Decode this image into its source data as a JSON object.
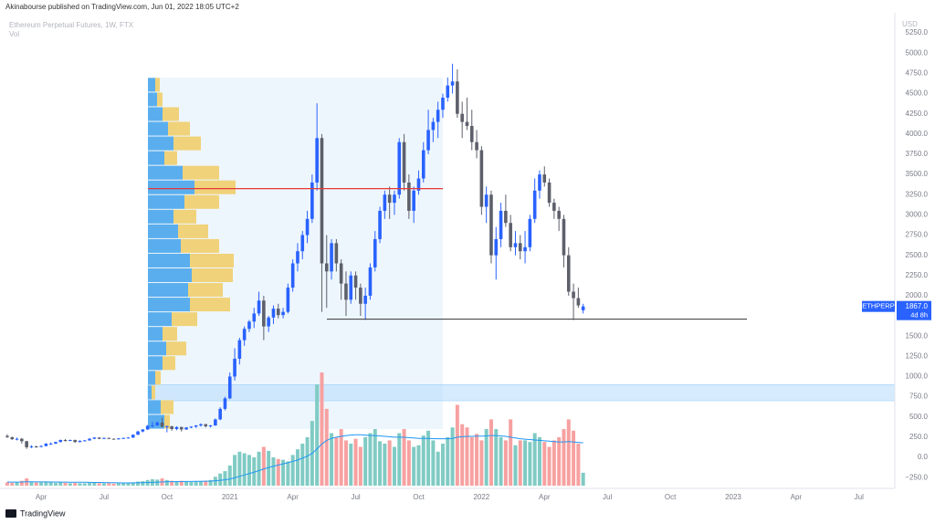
{
  "header": {
    "publisher": "Akinabourse published on TradingView.com, Jun 01, 2022 18:05 UTC+2",
    "footer": "TradingView"
  },
  "chart_data": {
    "type": "candlestick",
    "title": "Ethereum Perpetual Futures, 1W, FTX",
    "volume_label": "Vol",
    "currency": "USD",
    "up_color": "#2962ff",
    "down_color": "#5d606b",
    "vol_up_color": "#80cbc4",
    "vol_down_color": "#f7a1a1",
    "ma_color": "#2196f3",
    "profile_up_color": "#5aaeee",
    "profile_down_color": "#f0d27a",
    "poc_color": "#e53935",
    "support_color": "#333333",
    "zone_color": "#bbdefb",
    "ylim": [
      -350,
      5500
    ],
    "xlim": [
      -1.5,
      183.4
    ],
    "yticks": [
      {
        "value": 5250,
        "label": "5250.0"
      },
      {
        "value": 5000,
        "label": "5000.0"
      },
      {
        "value": 4750,
        "label": "4750.0"
      },
      {
        "value": 4500,
        "label": "4500.0"
      },
      {
        "value": 4250,
        "label": "4250.0"
      },
      {
        "value": 4000,
        "label": "4000.0"
      },
      {
        "value": 3750,
        "label": "3750.0"
      },
      {
        "value": 3500,
        "label": "3500.0"
      },
      {
        "value": 3250,
        "label": "3250.0"
      },
      {
        "value": 3000,
        "label": "3000.0"
      },
      {
        "value": 2750,
        "label": "2750.0"
      },
      {
        "value": 2500,
        "label": "2500.0"
      },
      {
        "value": 2250,
        "label": "2250.0"
      },
      {
        "value": 2000,
        "label": "2000.0"
      },
      {
        "value": 1750,
        "label": "1750.0"
      },
      {
        "value": 1500,
        "label": "1500.0"
      },
      {
        "value": 1250,
        "label": "1250.0"
      },
      {
        "value": 1000,
        "label": "1000.0"
      },
      {
        "value": 750,
        "label": "750.0"
      },
      {
        "value": 500,
        "label": "500.0"
      },
      {
        "value": 250,
        "label": "250.0"
      },
      {
        "value": 0,
        "label": "0.0"
      },
      {
        "value": -250,
        "label": "−250.0"
      }
    ],
    "xticks": [
      {
        "value": 7,
        "label": "Apr"
      },
      {
        "value": 20,
        "label": "Jul"
      },
      {
        "value": 33,
        "label": "Oct"
      },
      {
        "value": 46,
        "label": "2021"
      },
      {
        "value": 59,
        "label": "Apr"
      },
      {
        "value": 72,
        "label": "Jul"
      },
      {
        "value": 85,
        "label": "Oct"
      },
      {
        "value": 98,
        "label": "2022"
      },
      {
        "value": 111,
        "label": "Apr"
      },
      {
        "value": 124,
        "label": "Jul"
      },
      {
        "value": 137,
        "label": "Oct"
      },
      {
        "value": 150,
        "label": "2023"
      },
      {
        "value": 163,
        "label": "Apr"
      },
      {
        "value": 176,
        "label": "Jul"
      }
    ],
    "ohlc": [
      [
        265,
        285,
        240,
        250
      ],
      [
        250,
        255,
        215,
        225
      ],
      [
        225,
        245,
        210,
        230
      ],
      [
        230,
        240,
        170,
        200
      ],
      [
        200,
        205,
        105,
        125
      ],
      [
        125,
        150,
        115,
        135
      ],
      [
        135,
        145,
        120,
        130
      ],
      [
        130,
        150,
        125,
        140
      ],
      [
        140,
        175,
        135,
        170
      ],
      [
        170,
        185,
        155,
        170
      ],
      [
        170,
        195,
        165,
        190
      ],
      [
        190,
        220,
        185,
        215
      ],
      [
        215,
        225,
        195,
        205
      ],
      [
        205,
        220,
        200,
        215
      ],
      [
        215,
        220,
        180,
        190
      ],
      [
        190,
        210,
        185,
        205
      ],
      [
        205,
        215,
        200,
        210
      ],
      [
        210,
        240,
        205,
        230
      ],
      [
        230,
        250,
        225,
        245
      ],
      [
        245,
        250,
        225,
        230
      ],
      [
        230,
        245,
        225,
        240
      ],
      [
        240,
        245,
        225,
        230
      ],
      [
        230,
        235,
        220,
        225
      ],
      [
        225,
        240,
        220,
        235
      ],
      [
        235,
        245,
        230,
        240
      ],
      [
        240,
        250,
        235,
        245
      ],
      [
        245,
        285,
        240,
        280
      ],
      [
        280,
        330,
        275,
        320
      ],
      [
        320,
        350,
        310,
        345
      ],
      [
        345,
        400,
        340,
        390
      ],
      [
        390,
        440,
        370,
        395
      ],
      [
        395,
        445,
        390,
        430
      ],
      [
        430,
        490,
        370,
        380
      ],
      [
        380,
        395,
        310,
        385
      ],
      [
        385,
        390,
        330,
        350
      ],
      [
        350,
        385,
        335,
        375
      ],
      [
        375,
        380,
        320,
        345
      ],
      [
        345,
        375,
        340,
        370
      ],
      [
        370,
        385,
        360,
        380
      ],
      [
        380,
        400,
        365,
        395
      ],
      [
        395,
        420,
        380,
        410
      ],
      [
        410,
        415,
        370,
        385
      ],
      [
        385,
        400,
        370,
        395
      ],
      [
        395,
        480,
        390,
        470
      ],
      [
        470,
        620,
        460,
        600
      ],
      [
        600,
        750,
        580,
        730
      ],
      [
        730,
        1050,
        720,
        1000
      ],
      [
        1000,
        1350,
        950,
        1220
      ],
      [
        1220,
        1480,
        1150,
        1450
      ],
      [
        1450,
        1620,
        1380,
        1590
      ],
      [
        1590,
        1700,
        1550,
        1680
      ],
      [
        1680,
        1850,
        1600,
        1780
      ],
      [
        1780,
        2050,
        1750,
        1940
      ],
      [
        1940,
        2000,
        1450,
        1620
      ],
      [
        1620,
        1750,
        1550,
        1730
      ],
      [
        1730,
        1880,
        1650,
        1840
      ],
      [
        1840,
        1900,
        1720,
        1760
      ],
      [
        1760,
        1850,
        1720,
        1800
      ],
      [
        1800,
        2150,
        1780,
        2100
      ],
      [
        2100,
        2450,
        2050,
        2400
      ],
      [
        2400,
        2650,
        2300,
        2550
      ],
      [
        2550,
        2800,
        2450,
        2750
      ],
      [
        2750,
        3050,
        2650,
        2950
      ],
      [
        2950,
        3500,
        2900,
        3400
      ],
      [
        3400,
        4380,
        3300,
        3950
      ],
      [
        3950,
        4000,
        1800,
        2400
      ],
      [
        2400,
        2750,
        1850,
        2300
      ],
      [
        2300,
        2700,
        2200,
        2650
      ],
      [
        2650,
        2700,
        2300,
        2400
      ],
      [
        2400,
        2450,
        1950,
        2150
      ],
      [
        2150,
        2300,
        1750,
        1950
      ],
      [
        1950,
        2300,
        1900,
        2250
      ],
      [
        2250,
        2300,
        1950,
        2100
      ],
      [
        2100,
        2150,
        1750,
        1900
      ],
      [
        1900,
        2100,
        1700,
        2000
      ],
      [
        2000,
        2400,
        1950,
        2350
      ],
      [
        2350,
        2800,
        2300,
        2700
      ],
      [
        2700,
        3100,
        2650,
        3050
      ],
      [
        3050,
        3300,
        2950,
        3250
      ],
      [
        3250,
        3350,
        2950,
        3150
      ],
      [
        3150,
        3300,
        3000,
        3250
      ],
      [
        3250,
        3950,
        3200,
        3900
      ],
      [
        3900,
        4000,
        3300,
        3400
      ],
      [
        3400,
        3500,
        2950,
        3050
      ],
      [
        3050,
        3350,
        2900,
        3300
      ],
      [
        3300,
        3550,
        3250,
        3450
      ],
      [
        3450,
        3900,
        3400,
        3800
      ],
      [
        3800,
        4300,
        3750,
        4050
      ],
      [
        4050,
        4200,
        3900,
        4150
      ],
      [
        4150,
        4400,
        3950,
        4300
      ],
      [
        4300,
        4500,
        4200,
        4450
      ],
      [
        4450,
        4700,
        4400,
        4600
      ],
      [
        4600,
        4870,
        4500,
        4650
      ],
      [
        4650,
        4800,
        4200,
        4250
      ],
      [
        4250,
        4400,
        3950,
        4150
      ],
      [
        4150,
        4450,
        4050,
        4100
      ],
      [
        4100,
        4300,
        3800,
        3900
      ],
      [
        3900,
        4050,
        3700,
        3800
      ],
      [
        3800,
        3850,
        3000,
        3100
      ],
      [
        3100,
        3350,
        2900,
        3250
      ],
      [
        3250,
        3300,
        2400,
        2500
      ],
      [
        2500,
        2850,
        2200,
        2700
      ],
      [
        2700,
        3150,
        2600,
        3050
      ],
      [
        3050,
        3250,
        2850,
        2900
      ],
      [
        2900,
        3000,
        2550,
        2600
      ],
      [
        2600,
        2800,
        2500,
        2650
      ],
      [
        2650,
        2750,
        2450,
        2550
      ],
      [
        2550,
        2800,
        2400,
        2600
      ],
      [
        2600,
        3000,
        2550,
        2950
      ],
      [
        2950,
        3450,
        2900,
        3300
      ],
      [
        3300,
        3550,
        3200,
        3500
      ],
      [
        3500,
        3600,
        3350,
        3400
      ],
      [
        3400,
        3450,
        3100,
        3150
      ],
      [
        3150,
        3200,
        2950,
        3050
      ],
      [
        3050,
        3100,
        2800,
        2950
      ],
      [
        2950,
        3000,
        2350,
        2500
      ],
      [
        2500,
        2600,
        2000,
        2050
      ],
      [
        2050,
        2150,
        1700,
        1970
      ],
      [
        1970,
        2100,
        1850,
        1880
      ],
      [
        1820,
        1900,
        1780,
        1867
      ]
    ],
    "volume": [
      40,
      35,
      45,
      60,
      90,
      50,
      40,
      40,
      45,
      40,
      35,
      40,
      35,
      30,
      35,
      30,
      30,
      35,
      35,
      30,
      30,
      30,
      25,
      30,
      30,
      35,
      40,
      50,
      55,
      70,
      80,
      75,
      90,
      70,
      60,
      55,
      60,
      50,
      45,
      50,
      55,
      60,
      70,
      110,
      150,
      180,
      250,
      380,
      420,
      400,
      380,
      350,
      420,
      480,
      430,
      350,
      330,
      320,
      300,
      380,
      450,
      520,
      600,
      800,
      1250,
      1400,
      950,
      650,
      600,
      700,
      560,
      520,
      580,
      480,
      600,
      650,
      700,
      550,
      520,
      560,
      480,
      650,
      700,
      560,
      480,
      500,
      620,
      680,
      560,
      420,
      520,
      600,
      720,
      1000,
      760,
      720,
      600,
      640,
      560,
      700,
      820,
      700,
      600,
      560,
      820,
      500,
      560,
      560,
      540,
      650,
      600,
      540,
      480,
      560,
      600,
      700,
      820,
      680,
      520,
      160
    ],
    "volume_ma": [
      45,
      44,
      44,
      45,
      48,
      48,
      47,
      46,
      46,
      45,
      45,
      44,
      44,
      43,
      43,
      42,
      42,
      41,
      40,
      39,
      38,
      37,
      36,
      35,
      34,
      34,
      35,
      36,
      37,
      39,
      41,
      43,
      46,
      48,
      49,
      50,
      51,
      52,
      52,
      53,
      54,
      55,
      57,
      61,
      66,
      72,
      82,
      97,
      115,
      132,
      150,
      167,
      186,
      206,
      224,
      240,
      255,
      270,
      284,
      300,
      318,
      340,
      365,
      400,
      455,
      515,
      560,
      585,
      600,
      610,
      620,
      625,
      630,
      630,
      625,
      620,
      620,
      615,
      610,
      605,
      600,
      600,
      598,
      595,
      590,
      585,
      585,
      585,
      582,
      580,
      580,
      580,
      585,
      600,
      605,
      610,
      610,
      612,
      612,
      615,
      620,
      620,
      615,
      610,
      600,
      590,
      580,
      575,
      570,
      565,
      560,
      555,
      550,
      545,
      540,
      540,
      545,
      540,
      535,
      530
    ],
    "profile_range": [
      350,
      4700
    ],
    "profile_up": [
      8,
      10,
      16,
      22,
      28,
      18,
      38,
      51,
      40,
      28,
      33,
      36,
      46,
      48,
      44,
      46,
      26,
      16,
      20,
      16,
      8,
      4,
      14,
      18
    ],
    "profile_down": [
      5,
      6,
      18,
      24,
      30,
      14,
      40,
      45,
      38,
      25,
      33,
      42,
      48,
      45,
      38,
      44,
      28,
      16,
      22,
      14,
      6,
      4,
      14,
      6
    ],
    "poc": 3325,
    "support": 1710,
    "zone": [
      700,
      900
    ],
    "price_tag": {
      "symbol": "ETHPERP",
      "value": 1867,
      "label": "1867.0",
      "countdown": "4d 8h"
    }
  }
}
